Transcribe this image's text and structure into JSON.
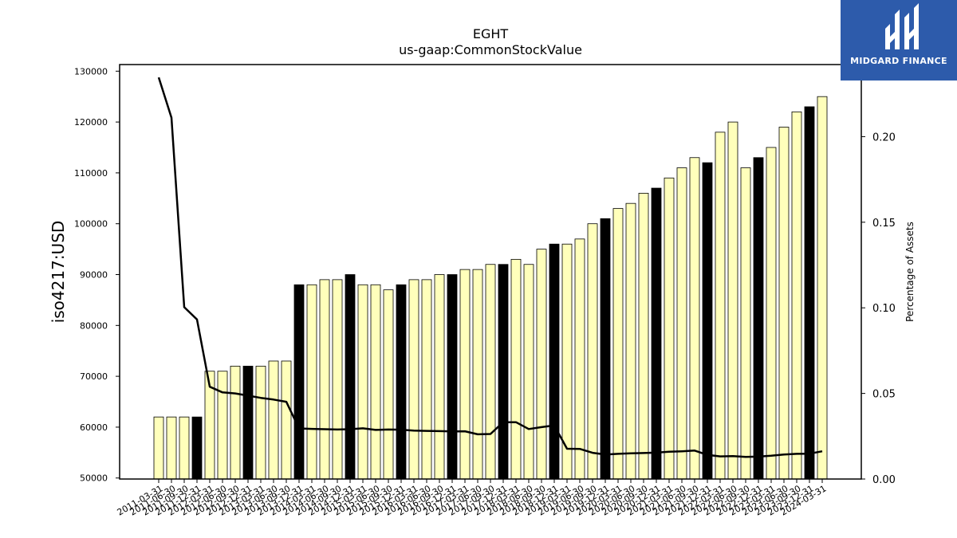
{
  "chart_data": {
    "type": "bar",
    "title": "EGHT",
    "subtitle": "us-gaap:CommonStockValue",
    "ylabel": "iso4217:USD",
    "y2label": "Percentage of Assets",
    "ylim": [
      49800,
      131300
    ],
    "y2lim": [
      0,
      0.2421
    ],
    "yticks": [
      50000,
      60000,
      70000,
      80000,
      90000,
      100000,
      110000,
      120000,
      130000
    ],
    "y2ticks": [
      0.0,
      0.05,
      0.1,
      0.15,
      0.2
    ],
    "y2tick_labels": [
      "0.00",
      "0.05",
      "0.10",
      "0.15",
      "0.20"
    ],
    "grid": false,
    "colors": {
      "bar_light": "#ffffbb",
      "bar_dark": "#000000",
      "line": "#000000"
    },
    "categories": [
      "2011-03-31",
      "2011-06-30",
      "2011-09-30",
      "2011-12-31",
      "2012-03-31",
      "2012-06-30",
      "2012-09-30",
      "2012-12-31",
      "2013-03-31",
      "2013-06-30",
      "2013-09-30",
      "2013-12-31",
      "2014-03-31",
      "2014-06-30",
      "2014-09-30",
      "2014-12-31",
      "2015-03-31",
      "2015-06-30",
      "2015-09-30",
      "2015-12-31",
      "2016-03-31",
      "2016-06-30",
      "2016-09-30",
      "2016-12-31",
      "2017-03-31",
      "2017-06-30",
      "2017-09-30",
      "2017-12-31",
      "2018-03-31",
      "2018-06-30",
      "2018-09-30",
      "2018-12-31",
      "2019-03-31",
      "2019-06-30",
      "2019-09-30",
      "2019-12-31",
      "2020-03-31",
      "2020-06-30",
      "2020-09-30",
      "2020-12-31",
      "2021-03-31",
      "2021-06-30",
      "2021-09-30",
      "2021-12-31",
      "2022-03-31",
      "2022-06-30",
      "2022-09-30",
      "2022-12-31",
      "2023-03-31",
      "2023-06-30",
      "2023-09-30",
      "2023-12-31",
      "2024-03-31"
    ],
    "series": [
      {
        "type": "bar",
        "axis": "left",
        "values": [
          62000,
          62000,
          62000,
          62000,
          71000,
          71000,
          72000,
          72000,
          72000,
          73000,
          73000,
          88000,
          88000,
          89000,
          89000,
          90000,
          88000,
          88000,
          87000,
          88000,
          89000,
          89000,
          90000,
          90000,
          91000,
          91000,
          92000,
          92000,
          93000,
          92000,
          95000,
          96000,
          96000,
          97000,
          100000,
          101000,
          103000,
          104000,
          106000,
          107000,
          109000,
          111000,
          113000,
          112000,
          118000,
          120000,
          111000,
          113000,
          115000,
          119000,
          122000,
          123000,
          125000
        ],
        "fiscal_year_end": [
          false,
          false,
          false,
          true,
          false,
          false,
          false,
          true,
          false,
          false,
          false,
          true,
          false,
          false,
          false,
          true,
          false,
          false,
          false,
          true,
          false,
          false,
          false,
          true,
          false,
          false,
          false,
          true,
          false,
          false,
          false,
          true,
          false,
          false,
          false,
          true,
          false,
          false,
          false,
          true,
          false,
          false,
          false,
          true,
          false,
          false,
          false,
          true,
          false,
          false,
          false,
          true,
          false
        ]
      },
      {
        "type": "line",
        "axis": "right",
        "values": [
          0.2346,
          0.2111,
          0.1004,
          0.0932,
          0.0539,
          0.0506,
          0.05,
          0.0487,
          0.0474,
          0.0464,
          0.0451,
          0.0295,
          0.0293,
          0.0291,
          0.0289,
          0.0291,
          0.0296,
          0.0287,
          0.0289,
          0.0288,
          0.0283,
          0.0281,
          0.028,
          0.0278,
          0.0279,
          0.0261,
          0.0263,
          0.0332,
          0.0332,
          0.0292,
          0.0303,
          0.0313,
          0.0177,
          0.0176,
          0.0153,
          0.0143,
          0.0147,
          0.015,
          0.0152,
          0.0154,
          0.0159,
          0.0162,
          0.0166,
          0.0141,
          0.0132,
          0.0134,
          0.0129,
          0.0131,
          0.0136,
          0.0143,
          0.0147,
          0.0148,
          0.0162
        ]
      }
    ]
  },
  "logo": {
    "text": "MIDGARD FINANCE"
  }
}
